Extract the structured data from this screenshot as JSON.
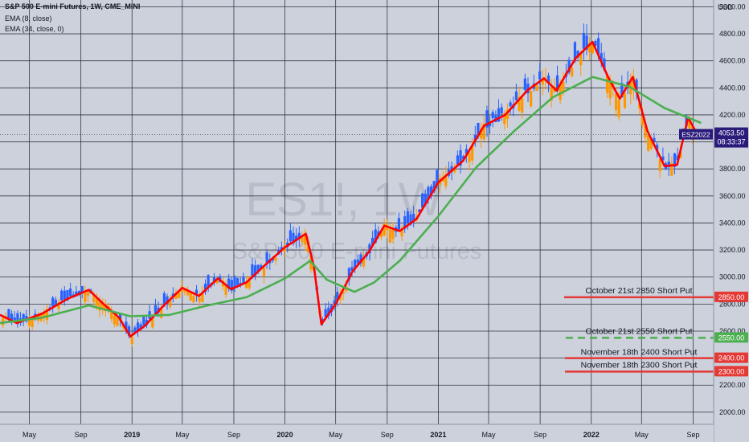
{
  "header": {
    "title": "S&P 500 E-mini Futures, 1W, CME_MINI",
    "studies": [
      "EMA (8, close)",
      "EMA (34, close, 0)"
    ]
  },
  "watermark": {
    "symbol": "ES1!, 1W",
    "description": "S&P 500 E-mini Futures"
  },
  "price_axis": {
    "currency": "USD",
    "last_price": {
      "ticker": "ESZ2022",
      "price": "4053.50",
      "countdown": "08:33:37"
    }
  },
  "colors": {
    "background": "#ccd1dc",
    "up_candle": "#2962ff",
    "down_candle": "#ff9800",
    "ema_fast": "#ff0000",
    "ema_slow": "#4caf50",
    "grid": "#1b1f2a",
    "put_level": "#e53935",
    "put_level_dashed": "#4caf50",
    "last_price_label": "#2a1a7a"
  },
  "chart_data": {
    "type": "candlestick",
    "timeframe": "1W",
    "y_axis": {
      "ticks": [
        2000,
        2200,
        2400,
        2600,
        2800,
        3000,
        3200,
        3400,
        3600,
        3800,
        4000,
        4200,
        4400,
        4600,
        4800,
        5000
      ],
      "tick_labels": [
        "2000.00",
        "2200.00",
        "2400.00",
        "2600.00",
        "2800.00",
        "3000.00",
        "3200.00",
        "3400.00",
        "3600.00",
        "3800.00",
        "4000.00",
        "4200.00",
        "4400.00",
        "4600.00",
        "4800.00",
        "5000.00"
      ],
      "range": [
        1910,
        5050
      ]
    },
    "x_axis": {
      "range": [
        "2018-02-20",
        "2022-10-20"
      ],
      "ticks": [
        {
          "label": "May",
          "date": "2018-05-01",
          "bold": false
        },
        {
          "label": "Sep",
          "date": "2018-09-01",
          "bold": false
        },
        {
          "label": "2019",
          "date": "2019-01-01",
          "bold": true
        },
        {
          "label": "May",
          "date": "2019-05-01",
          "bold": false
        },
        {
          "label": "Sep",
          "date": "2019-09-01",
          "bold": false
        },
        {
          "label": "2020",
          "date": "2020-01-01",
          "bold": true
        },
        {
          "label": "May",
          "date": "2020-05-01",
          "bold": false
        },
        {
          "label": "Sep",
          "date": "2020-09-01",
          "bold": false
        },
        {
          "label": "2021",
          "date": "2021-01-01",
          "bold": true
        },
        {
          "label": "May",
          "date": "2021-05-01",
          "bold": false
        },
        {
          "label": "Sep",
          "date": "2021-09-01",
          "bold": false
        },
        {
          "label": "2022",
          "date": "2022-01-01",
          "bold": true
        },
        {
          "label": "May",
          "date": "2022-05-01",
          "bold": false
        },
        {
          "label": "Sep",
          "date": "2022-09-01",
          "bold": false
        }
      ]
    },
    "series": [
      {
        "name": "EMA (8, close)",
        "color": "#ff0000",
        "points": [
          [
            "2018-02-20",
            2720
          ],
          [
            "2018-04-01",
            2660
          ],
          [
            "2018-06-01",
            2730
          ],
          [
            "2018-08-01",
            2840
          ],
          [
            "2018-09-20",
            2905
          ],
          [
            "2018-10-25",
            2800
          ],
          [
            "2018-12-01",
            2700
          ],
          [
            "2018-12-28",
            2560
          ],
          [
            "2019-02-01",
            2640
          ],
          [
            "2019-03-15",
            2780
          ],
          [
            "2019-05-01",
            2920
          ],
          [
            "2019-06-10",
            2860
          ],
          [
            "2019-07-25",
            2990
          ],
          [
            "2019-08-25",
            2910
          ],
          [
            "2019-10-01",
            2960
          ],
          [
            "2019-11-15",
            3090
          ],
          [
            "2020-01-01",
            3220
          ],
          [
            "2020-02-20",
            3320
          ],
          [
            "2020-03-10",
            3080
          ],
          [
            "2020-03-28",
            2650
          ],
          [
            "2020-05-01",
            2800
          ],
          [
            "2020-06-10",
            3040
          ],
          [
            "2020-07-20",
            3190
          ],
          [
            "2020-08-25",
            3380
          ],
          [
            "2020-10-01",
            3340
          ],
          [
            "2020-11-10",
            3430
          ],
          [
            "2021-01-01",
            3700
          ],
          [
            "2021-03-01",
            3860
          ],
          [
            "2021-04-20",
            4120
          ],
          [
            "2021-06-10",
            4200
          ],
          [
            "2021-08-01",
            4380
          ],
          [
            "2021-09-10",
            4470
          ],
          [
            "2021-10-10",
            4380
          ],
          [
            "2021-11-25",
            4620
          ],
          [
            "2022-01-04",
            4740
          ],
          [
            "2022-02-10",
            4480
          ],
          [
            "2022-03-10",
            4320
          ],
          [
            "2022-04-10",
            4480
          ],
          [
            "2022-05-15",
            4080
          ],
          [
            "2022-06-25",
            3820
          ],
          [
            "2022-07-25",
            3830
          ],
          [
            "2022-08-20",
            4180
          ],
          [
            "2022-09-05",
            4090
          ]
        ]
      },
      {
        "name": "EMA (34, close, 0)",
        "color": "#4caf50",
        "points": [
          [
            "2018-02-20",
            2660
          ],
          [
            "2018-06-01",
            2700
          ],
          [
            "2018-09-20",
            2790
          ],
          [
            "2018-12-28",
            2710
          ],
          [
            "2019-04-01",
            2720
          ],
          [
            "2019-07-01",
            2790
          ],
          [
            "2019-10-01",
            2850
          ],
          [
            "2020-01-01",
            2990
          ],
          [
            "2020-03-01",
            3120
          ],
          [
            "2020-04-10",
            2980
          ],
          [
            "2020-06-15",
            2890
          ],
          [
            "2020-08-01",
            2960
          ],
          [
            "2020-10-01",
            3120
          ],
          [
            "2021-01-01",
            3450
          ],
          [
            "2021-04-01",
            3810
          ],
          [
            "2021-07-01",
            4080
          ],
          [
            "2021-10-01",
            4330
          ],
          [
            "2022-01-04",
            4480
          ],
          [
            "2022-04-01",
            4410
          ],
          [
            "2022-06-25",
            4250
          ],
          [
            "2022-09-20",
            4140
          ]
        ]
      }
    ],
    "levels": [
      {
        "label": "October 21st 2850 Short Put",
        "price": 2850,
        "price_label": "2850.00",
        "style": "solid",
        "color": "#e53935"
      },
      {
        "label": "October 21st 2550 Short Put",
        "price": 2550,
        "price_label": "2550.00",
        "style": "dashed",
        "color": "#4caf50"
      },
      {
        "label": "November 18th 2400 Short Put",
        "price": 2400,
        "price_label": "2400.00",
        "style": "solid",
        "color": "#e53935"
      },
      {
        "label": "November 18th 2300 Short Put",
        "price": 2300,
        "price_label": "2300.00",
        "style": "solid",
        "color": "#e53935"
      }
    ],
    "last_price": 4053.5,
    "grid": true
  }
}
